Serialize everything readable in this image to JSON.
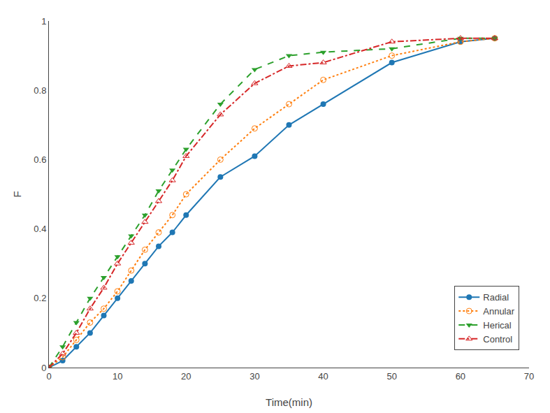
{
  "chart_data": {
    "type": "line",
    "xlabel": "Time(min)",
    "ylabel": "F",
    "x": [
      0,
      2,
      4,
      6,
      8,
      10,
      12,
      14,
      16,
      18,
      20,
      25,
      30,
      35,
      40,
      50,
      60,
      65
    ],
    "series": [
      {
        "name": "Radial",
        "marker": "circle",
        "line_style": "solid",
        "values": [
          0,
          0.02,
          0.06,
          0.1,
          0.15,
          0.2,
          0.25,
          0.3,
          0.35,
          0.39,
          0.44,
          0.55,
          0.61,
          0.7,
          0.76,
          0.88,
          0.94,
          0.95
        ]
      },
      {
        "name": "Annular",
        "marker": "circle-open",
        "line_style": "dot",
        "values": [
          0,
          0.03,
          0.08,
          0.13,
          0.17,
          0.22,
          0.28,
          0.34,
          0.39,
          0.44,
          0.5,
          0.6,
          0.69,
          0.76,
          0.83,
          0.9,
          0.94,
          0.95
        ]
      },
      {
        "name": "Herical",
        "marker": "triangle-down",
        "line_style": "dash",
        "values": [
          0,
          0.06,
          0.13,
          0.2,
          0.26,
          0.32,
          0.38,
          0.44,
          0.51,
          0.57,
          0.63,
          0.76,
          0.86,
          0.9,
          0.91,
          0.92,
          0.95,
          0.95
        ]
      },
      {
        "name": "Control",
        "marker": "triangle-up-open",
        "line_style": "dashdot",
        "values": [
          0,
          0.04,
          0.1,
          0.17,
          0.23,
          0.3,
          0.36,
          0.42,
          0.48,
          0.54,
          0.61,
          0.73,
          0.82,
          0.87,
          0.88,
          0.94,
          0.95,
          0.95
        ]
      }
    ],
    "xlim": [
      0,
      70
    ],
    "ylim": [
      0,
      1.0
    ],
    "xticks": [
      0,
      10,
      20,
      30,
      40,
      50,
      60,
      70
    ],
    "yticks": [
      0,
      0.2,
      0.4,
      0.6,
      0.8,
      1.0
    ],
    "grid": false,
    "legend": "lower right"
  }
}
